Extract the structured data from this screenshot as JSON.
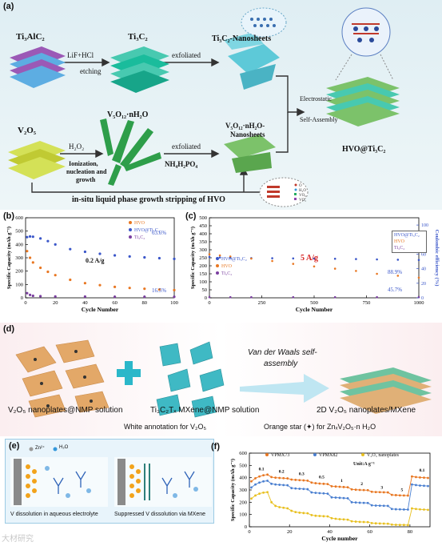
{
  "panel_a": {
    "label": "(a)",
    "ti3alc2": "Ti₃AlC₂",
    "reagent": "LiF+HCl",
    "etching": "etching",
    "ti3c2": "Ti₃C₂",
    "exfoliated1": "exfoliated",
    "ti3c2_nanosheets": "Ti₃C₂-Nanosheets",
    "v2o5": "V₂O₅",
    "h2o2": "H₂O₂",
    "v5o12": "V₅O₁₂·nH₂O",
    "ionization": "Ionization,",
    "nucleation": "nucleation and",
    "growth": "growth",
    "exfoliated2": "exfoliated",
    "v5o12_nanosheets_1": "V₅O₁₂·nH₂O-",
    "v5o12_nanosheets_2": "Nanosheets",
    "nh4": "NH₄H₂PO₄",
    "electrostatic": "Electrostatic",
    "self_assembly": "Self-Assembly",
    "product": "HVO@Ti₃C₂",
    "bottom": "in-situ liquid phase growth stripping of HVO",
    "legend_items": [
      "O",
      "H₂O",
      "VO₆",
      "VO₅"
    ]
  },
  "panel_b": {
    "label": "(b)",
    "rate": "0.2 A/g",
    "retention_top": "63.6%",
    "retention_bottom": "16.5%"
  },
  "panel_c": {
    "label": "(c)",
    "rate": "5 A/g",
    "retention_top": "88.9%",
    "retention_bottom": "45.7%",
    "legend_eff": [
      "HVO@Ti₃C₂",
      "HVO",
      "Ti₃C₂"
    ]
  },
  "panel_d": {
    "label": "(d)",
    "label_left": "V₂O₅ nanoplates@NMP solution",
    "label_mid": "Ti₃C₂Tₓ MXene@NMP solution",
    "vdw_1": "Van der Waals self-",
    "vdw_2": "assembly",
    "label_right": "2D V₂O₅ nanoplates/MXene",
    "annot_1": "White annotation for V₂O₅",
    "annot_2": "Orange star (✦) for ZnₓV₂O₅·n H₂O"
  },
  "panel_e": {
    "label": "(e)",
    "zn": "Zn²⁺",
    "h2o": "H₂O",
    "caption_left": "V dissolution in aqueous electrolyte",
    "caption_right": "Suppressed V dissolution via MXene"
  },
  "panel_f": {
    "label": "(f)",
    "unit": "Unit:A g⁻¹",
    "rate_labels": [
      "0.1",
      "0.2",
      "0.3",
      "0.5",
      "1",
      "2",
      "3",
      "5",
      "0.1"
    ]
  },
  "watermark": "大材研究",
  "chart_data": [
    {
      "id": "b",
      "type": "scatter",
      "xlabel": "Cycle Number",
      "ylabel": "Specific Capacity (mAh g⁻¹)",
      "xlim": [
        0,
        100
      ],
      "ylim": [
        0,
        600
      ],
      "xticks": [
        0,
        20,
        40,
        60,
        80,
        100
      ],
      "yticks": [
        0,
        100,
        200,
        300,
        400,
        500,
        600
      ],
      "legend_position": "top-right",
      "series": [
        {
          "name": "HVO",
          "color": "#e87722",
          "x": [
            1,
            3,
            5,
            10,
            15,
            20,
            30,
            40,
            50,
            60,
            70,
            80,
            90,
            100
          ],
          "y": [
            350,
            300,
            265,
            225,
            195,
            170,
            135,
            110,
            95,
            82,
            74,
            68,
            62,
            58
          ]
        },
        {
          "name": "HVO@Ti₃C₂",
          "color": "#3a56c9",
          "x": [
            1,
            3,
            5,
            10,
            15,
            20,
            30,
            40,
            50,
            60,
            70,
            80,
            90,
            100
          ],
          "y": [
            455,
            460,
            458,
            445,
            425,
            400,
            365,
            345,
            330,
            318,
            310,
            303,
            297,
            292
          ]
        },
        {
          "name": "Ti₃C₂",
          "color": "#7b3fa0",
          "x": [
            1,
            3,
            5,
            10,
            20,
            40,
            60,
            80,
            100
          ],
          "y": [
            35,
            22,
            15,
            12,
            10,
            9,
            8,
            8,
            8
          ]
        }
      ]
    },
    {
      "id": "c",
      "type": "scatter",
      "xlabel": "Cycle Number",
      "ylabel": "Specific Capacity (mAh g⁻¹)",
      "ylabel_right": "Coulombic efficiency (%)",
      "xlim": [
        0,
        1000
      ],
      "ylim": [
        0,
        500
      ],
      "ylim_right": [
        0,
        110
      ],
      "xticks": [
        0,
        250,
        500,
        750,
        1000
      ],
      "yticks": [
        0,
        50,
        100,
        150,
        200,
        250,
        300,
        350,
        400,
        450,
        500
      ],
      "yticks_right": [
        0,
        20,
        40,
        60,
        80,
        100
      ],
      "legend_position": "center-left",
      "series": [
        {
          "name": "HVO@Ti₃C₂",
          "color": "#3a56c9",
          "x": [
            0,
            50,
            100,
            200,
            300,
            400,
            500,
            600,
            700,
            800,
            900,
            1000
          ],
          "y": [
            255,
            252,
            250,
            248,
            247,
            246,
            245,
            244,
            242,
            240,
            238,
            236
          ]
        },
        {
          "name": "HVO",
          "color": "#e87722",
          "x": [
            0,
            50,
            100,
            200,
            300,
            400,
            500,
            600,
            700,
            800,
            900,
            1000
          ],
          "y": [
            272,
            265,
            258,
            245,
            230,
            212,
            196,
            182,
            168,
            150,
            138,
            126
          ]
        },
        {
          "name": "Ti₃C₂",
          "color": "#7b3fa0",
          "x": [
            0,
            100,
            200,
            400,
            600,
            800,
            1000
          ],
          "y": [
            4,
            4,
            4,
            4,
            4,
            4,
            4
          ]
        }
      ]
    },
    {
      "id": "f",
      "type": "line",
      "xlabel": "Cycle number",
      "ylabel": "Specific Capacity (mAh g⁻¹)",
      "xlim": [
        0,
        90
      ],
      "ylim": [
        0,
        600
      ],
      "xticks": [
        0,
        20,
        40,
        60,
        80
      ],
      "yticks": [
        0,
        100,
        200,
        300,
        400,
        500,
        600
      ],
      "legend_position": "top",
      "series": [
        {
          "name": "VPMX73",
          "color": "#e87722",
          "x": [
            1,
            3,
            5,
            7,
            9,
            11,
            13,
            15,
            17,
            19,
            21,
            23,
            25,
            27,
            29,
            31,
            33,
            35,
            37,
            39,
            41,
            43,
            45,
            47,
            49,
            51,
            53,
            55,
            57,
            59,
            61,
            63,
            65,
            67,
            69,
            71,
            73,
            75,
            77,
            79,
            81,
            83,
            85,
            87,
            89
          ],
          "y": [
            370,
            395,
            410,
            420,
            425,
            405,
            400,
            398,
            396,
            394,
            385,
            382,
            380,
            378,
            376,
            360,
            355,
            352,
            350,
            348,
            330,
            328,
            326,
            324,
            322,
            305,
            302,
            300,
            299,
            298,
            285,
            283,
            282,
            281,
            280,
            260,
            258,
            256,
            255,
            254,
            410,
            405,
            402,
            400,
            398
          ]
        },
        {
          "name": "VPMX82",
          "color": "#4a7fd0",
          "x": [
            1,
            3,
            5,
            7,
            9,
            11,
            13,
            15,
            17,
            19,
            21,
            23,
            25,
            27,
            29,
            31,
            33,
            35,
            37,
            39,
            41,
            43,
            45,
            47,
            49,
            51,
            53,
            55,
            57,
            59,
            61,
            63,
            65,
            67,
            69,
            71,
            73,
            75,
            77,
            79,
            81,
            83,
            85,
            87,
            89
          ],
          "y": [
            320,
            345,
            360,
            370,
            375,
            350,
            345,
            342,
            340,
            338,
            315,
            312,
            310,
            308,
            306,
            280,
            276,
            274,
            272,
            270,
            240,
            238,
            236,
            234,
            232,
            200,
            198,
            196,
            195,
            194,
            175,
            173,
            172,
            171,
            170,
            145,
            143,
            142,
            141,
            140,
            345,
            340,
            336,
            334,
            332
          ]
        },
        {
          "name": "V₂O₅ nanoplates",
          "color": "#e8c020",
          "x": [
            1,
            3,
            5,
            7,
            9,
            11,
            13,
            15,
            17,
            19,
            21,
            23,
            25,
            27,
            29,
            31,
            33,
            35,
            37,
            39,
            41,
            43,
            45,
            47,
            49,
            51,
            53,
            55,
            57,
            59,
            61,
            63,
            65,
            67,
            69,
            71,
            73,
            75,
            77,
            79,
            81,
            83,
            85,
            87,
            89
          ],
          "y": [
            230,
            255,
            270,
            278,
            282,
            200,
            170,
            160,
            155,
            150,
            130,
            120,
            115,
            112,
            110,
            95,
            90,
            88,
            86,
            85,
            70,
            65,
            62,
            60,
            58,
            45,
            42,
            40,
            39,
            38,
            30,
            28,
            27,
            26,
            25,
            18,
            16,
            15,
            15,
            14,
            150,
            145,
            142,
            140,
            138
          ]
        }
      ]
    }
  ]
}
